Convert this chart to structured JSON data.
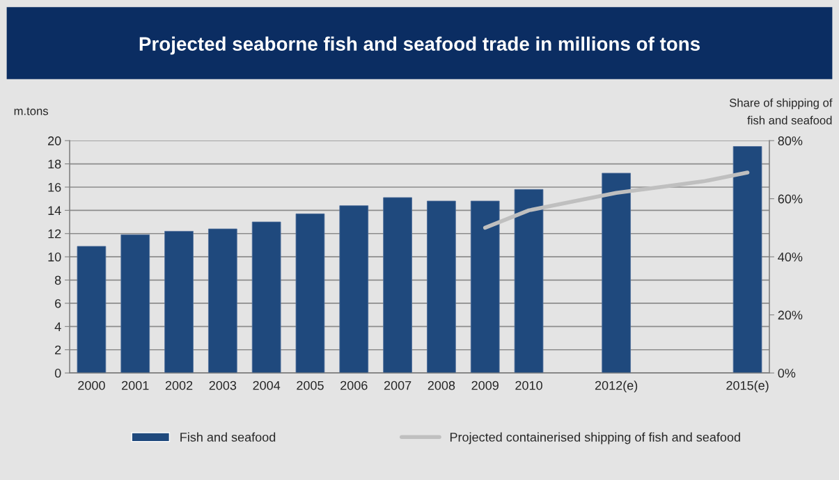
{
  "chart_data": {
    "type": "bar",
    "title": "Projected seaborne fish and seafood trade in millions of tons",
    "ylabel": "m.tons",
    "y2label": "Share of shipping of\nfish and seafood",
    "categories": [
      "2000",
      "2001",
      "2002",
      "2003",
      "2004",
      "2005",
      "2006",
      "2007",
      "2008",
      "2009",
      "2010",
      null,
      "2012(e)",
      null,
      null,
      "2015(e)"
    ],
    "series": [
      {
        "name": "Fish and seafood",
        "color": "#1f497d",
        "values": [
          10.9,
          11.9,
          12.2,
          12.4,
          13.0,
          13.7,
          14.4,
          15.1,
          14.8,
          14.8,
          15.8,
          null,
          17.2,
          null,
          null,
          19.5
        ]
      },
      {
        "name": "Projected containerised shipping of fish and seafood",
        "type": "line",
        "axis": "y2",
        "color": "#bfbfbf",
        "values": [
          null,
          null,
          null,
          null,
          null,
          null,
          null,
          null,
          null,
          50,
          56,
          59,
          62,
          64,
          66,
          69
        ]
      }
    ],
    "ylim": [
      0,
      20
    ],
    "yticks": [
      0,
      2,
      4,
      6,
      8,
      10,
      12,
      14,
      16,
      18,
      20
    ],
    "y2lim": [
      0,
      80
    ],
    "y2ticks": [
      {
        "value": 0,
        "label": "0%"
      },
      {
        "value": 20,
        "label": "20%"
      },
      {
        "value": 40,
        "label": "40%"
      },
      {
        "value": 60,
        "label": "60%"
      },
      {
        "value": 80,
        "label": "80%"
      }
    ],
    "grid": "y",
    "legend": "bottom",
    "marker": "none",
    "line_style": "solid"
  }
}
